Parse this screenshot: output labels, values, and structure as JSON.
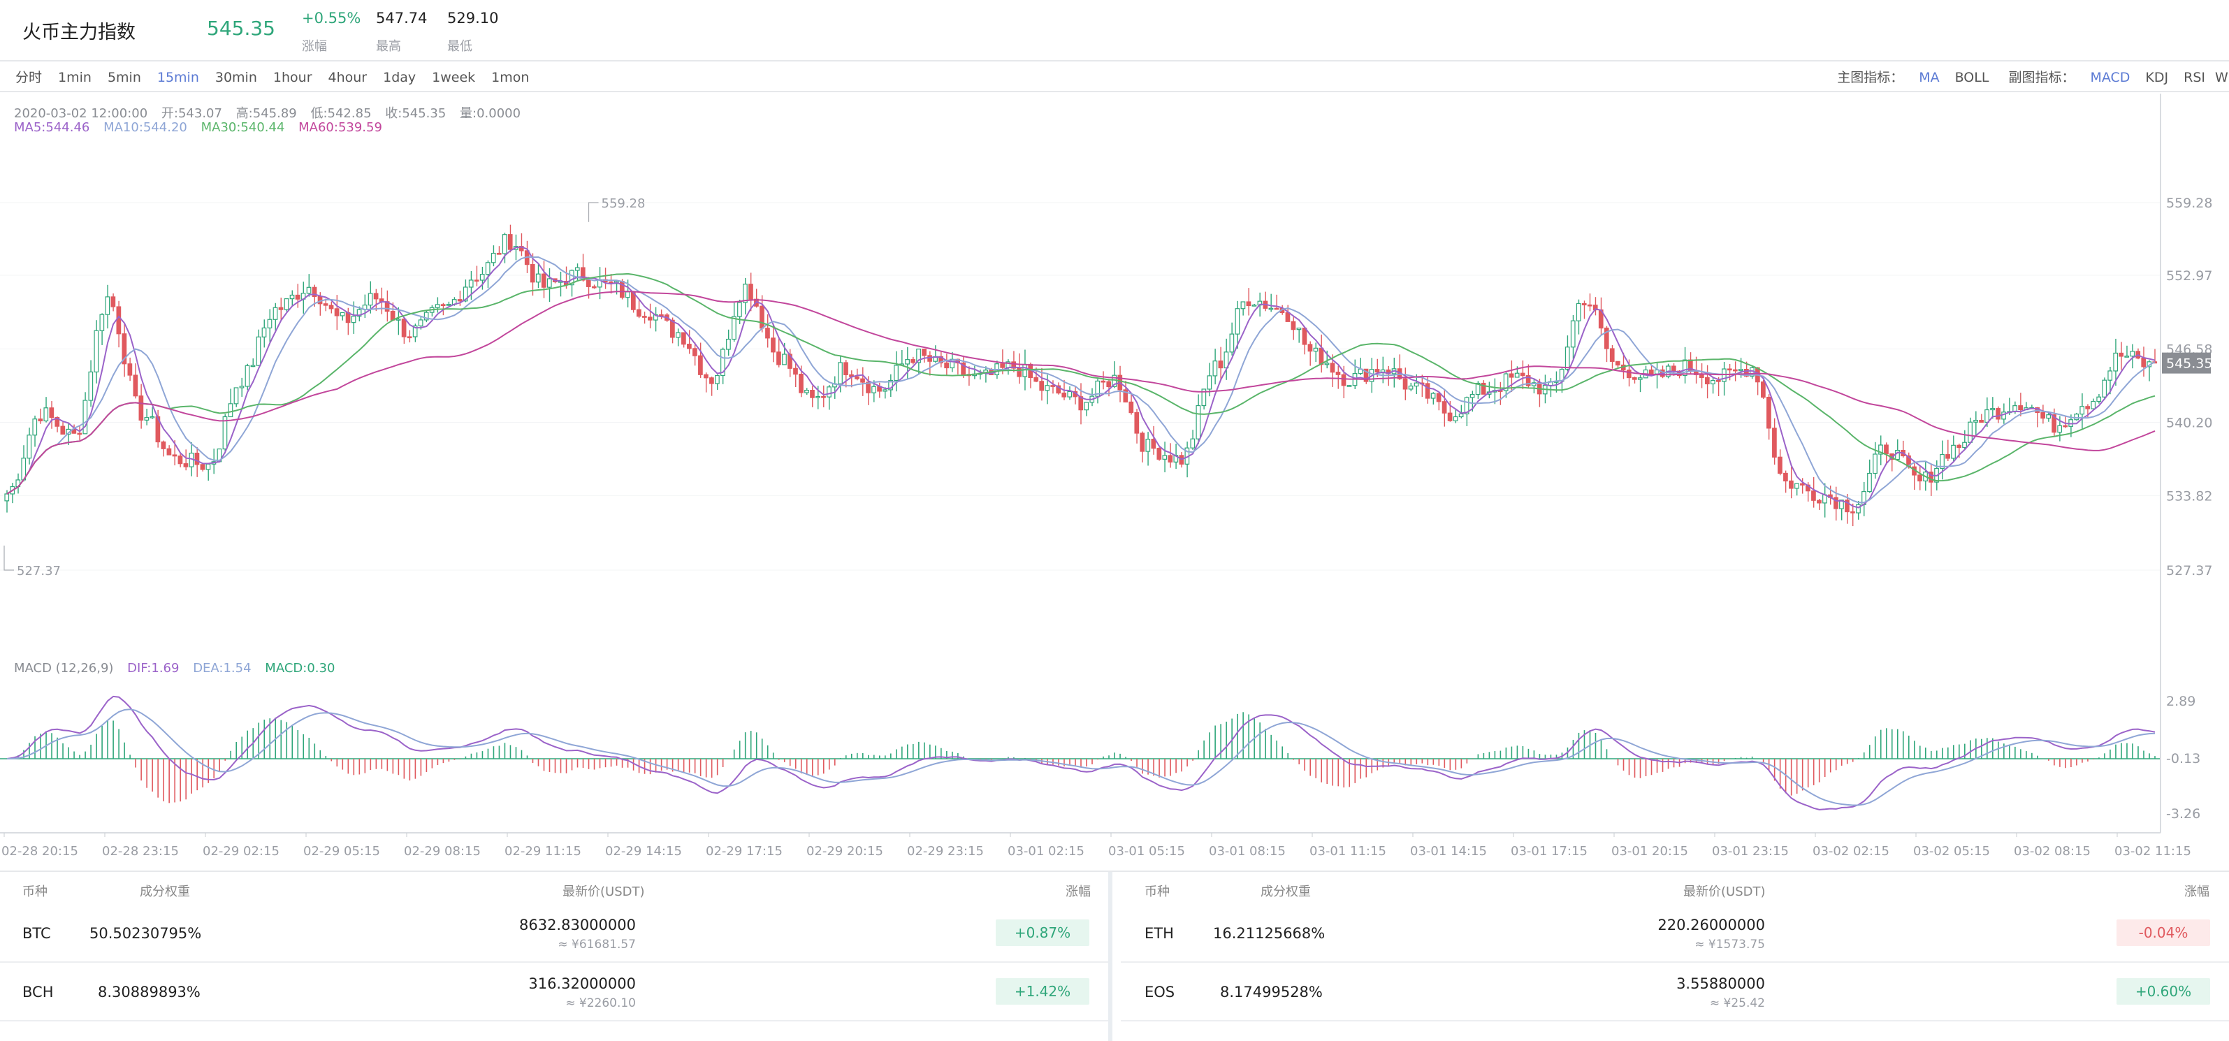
{
  "header": {
    "title": "火币主力指数",
    "price": "545.35",
    "change_value": "+0.55%",
    "change_label": "涨幅",
    "high_value": "547.74",
    "high_label": "最高",
    "low_value": "529.10",
    "low_label": "最低"
  },
  "periods": [
    "分时",
    "1min",
    "5min",
    "15min",
    "30min",
    "1hour",
    "4hour",
    "1day",
    "1week",
    "1mon"
  ],
  "active_period": "15min",
  "indicators": {
    "main_label": "主图指标：",
    "main": [
      "MA",
      "BOLL"
    ],
    "main_active": "MA",
    "sub_label": "副图指标：",
    "sub": [
      "MACD",
      "KDJ",
      "RSI",
      "WR"
    ],
    "sub_active": "MACD"
  },
  "ohlc_info": {
    "datetime": "2020-03-02 12:00:00",
    "open": "开:543.07",
    "high": "高:545.89",
    "low": "低:542.85",
    "close": "收:545.35",
    "volume": "量:0.0000"
  },
  "ma_info": {
    "ma5": "MA5:544.46",
    "ma10": "MA10:544.20",
    "ma30": "MA30:540.44",
    "ma60": "MA60:539.59"
  },
  "macd_info": {
    "name": "MACD  (12,26,9)",
    "dif": "DIF:1.69",
    "dea": "DEA:1.54",
    "macd": "MACD:0.30"
  },
  "colors": {
    "up": "#2fa67a",
    "down": "#e0595e",
    "ma5": "#9b63c9",
    "ma10": "#8fa6d6",
    "ma30": "#5ab56a",
    "ma60": "#c2479c",
    "accent": "#5c7bd4"
  },
  "chart_data": {
    "type": "candlestick",
    "price_axis_ticks": [
      "559.28",
      "552.97",
      "546.58",
      "540.20",
      "533.82",
      "527.37"
    ],
    "price_axis_range": [
      527.37,
      559.28
    ],
    "current_price_tag": "545.35",
    "max_marker": "559.28",
    "min_marker": "527.37",
    "macd_axis_ticks": [
      "2.89",
      "-0.13",
      "-3.26"
    ],
    "time_axis_ticks": [
      "02-28 20:15",
      "02-28 23:15",
      "02-29 02:15",
      "02-29 05:15",
      "02-29 08:15",
      "02-29 11:15",
      "02-29 14:15",
      "02-29 17:15",
      "02-29 20:15",
      "02-29 23:15",
      "03-01 02:15",
      "03-01 05:15",
      "03-01 08:15",
      "03-01 11:15",
      "03-01 14:15",
      "03-01 17:15",
      "03-01 20:15",
      "03-01 23:15",
      "03-02 02:15",
      "03-02 05:15",
      "03-02 08:15",
      "03-02 11:15"
    ],
    "close_keypoints": [
      [
        0,
        534
      ],
      [
        6,
        541
      ],
      [
        12,
        539
      ],
      [
        18,
        551
      ],
      [
        24,
        541
      ],
      [
        30,
        537
      ],
      [
        36,
        536.5
      ],
      [
        42,
        544
      ],
      [
        48,
        550
      ],
      [
        54,
        552
      ],
      [
        60,
        549
      ],
      [
        66,
        551
      ],
      [
        72,
        548
      ],
      [
        78,
        550
      ],
      [
        84,
        553
      ],
      [
        90,
        556
      ],
      [
        96,
        552
      ],
      [
        102,
        553
      ],
      [
        108,
        552
      ],
      [
        114,
        550
      ],
      [
        120,
        548
      ],
      [
        126,
        544
      ],
      [
        132,
        552
      ],
      [
        138,
        546
      ],
      [
        144,
        542
      ],
      [
        150,
        545
      ],
      [
        156,
        543
      ],
      [
        162,
        546
      ],
      [
        168,
        545
      ],
      [
        174,
        544
      ],
      [
        180,
        545
      ],
      [
        186,
        543
      ],
      [
        192,
        542
      ],
      [
        198,
        544
      ],
      [
        204,
        538
      ],
      [
        210,
        537
      ],
      [
        216,
        545
      ],
      [
        222,
        551
      ],
      [
        228,
        550
      ],
      [
        234,
        546
      ],
      [
        240,
        544
      ],
      [
        246,
        545
      ],
      [
        252,
        543
      ],
      [
        258,
        541
      ],
      [
        264,
        543
      ],
      [
        270,
        544
      ],
      [
        276,
        543
      ],
      [
        282,
        551
      ],
      [
        288,
        545
      ],
      [
        294,
        544
      ],
      [
        300,
        545
      ],
      [
        306,
        544
      ],
      [
        312,
        545
      ],
      [
        318,
        535
      ],
      [
        324,
        534
      ],
      [
        330,
        533
      ],
      [
        336,
        538
      ],
      [
        342,
        535
      ],
      [
        348,
        538
      ],
      [
        354,
        541
      ],
      [
        360,
        542
      ],
      [
        366,
        540
      ],
      [
        372,
        542
      ],
      [
        378,
        546
      ],
      [
        384,
        545
      ]
    ]
  },
  "tables": {
    "left": {
      "headers": {
        "symbol": "币种",
        "weight": "成分权重",
        "price": "最新价(USDT)",
        "change": "涨幅"
      },
      "rows": [
        {
          "symbol": "BTC",
          "weight": "50.50230795%",
          "price": "8632.83000000",
          "cny": "≈ ¥61681.57",
          "change": "+0.87%",
          "dir": "up"
        },
        {
          "symbol": "BCH",
          "weight": "8.30889893%",
          "price": "316.32000000",
          "cny": "≈ ¥2260.10",
          "change": "+1.42%",
          "dir": "up"
        }
      ]
    },
    "right": {
      "headers": {
        "symbol": "币种",
        "weight": "成分权重",
        "price": "最新价(USDT)",
        "change": "涨幅"
      },
      "rows": [
        {
          "symbol": "ETH",
          "weight": "16.21125668%",
          "price": "220.26000000",
          "cny": "≈ ¥1573.75",
          "change": "-0.04%",
          "dir": "down"
        },
        {
          "symbol": "EOS",
          "weight": "8.17499528%",
          "price": "3.55880000",
          "cny": "≈ ¥25.42",
          "change": "+0.60%",
          "dir": "up"
        }
      ]
    }
  }
}
